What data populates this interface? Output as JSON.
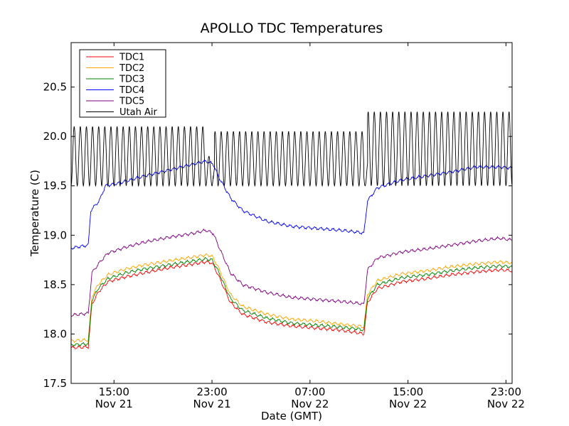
{
  "chart_data": {
    "type": "line",
    "title": "APOLLO TDC Temperatures",
    "xlabel": "Date (GMT)",
    "ylabel": "Temperature (C)",
    "x_unit": "hours since Nov 21 11:30 GMT",
    "xlim": [
      0,
      36
    ],
    "ylim": [
      17.5,
      20.95
    ],
    "yticks": [
      17.5,
      18.0,
      18.5,
      19.0,
      19.5,
      20.0,
      20.5
    ],
    "xticks": [
      {
        "x": 3.5,
        "time": "15:00",
        "date": "Nov 21"
      },
      {
        "x": 11.5,
        "time": "23:00",
        "date": "Nov 21"
      },
      {
        "x": 19.5,
        "time": "07:00",
        "date": "Nov 22"
      },
      {
        "x": 27.5,
        "time": "15:00",
        "date": "Nov 22"
      },
      {
        "x": 35.5,
        "time": "23:00",
        "date": "Nov 22"
      }
    ],
    "legend_position": "top-left",
    "series": [
      {
        "name": "TDC1",
        "color": "#ff0000",
        "points": [
          [
            0,
            17.86
          ],
          [
            1.4,
            17.87
          ],
          [
            1.7,
            18.3
          ],
          [
            2.2,
            18.42
          ],
          [
            3,
            18.53
          ],
          [
            4.5,
            18.58
          ],
          [
            6,
            18.62
          ],
          [
            8,
            18.67
          ],
          [
            10,
            18.71
          ],
          [
            11,
            18.73
          ],
          [
            11.5,
            18.72
          ],
          [
            12,
            18.6
          ],
          [
            13,
            18.32
          ],
          [
            14,
            18.2
          ],
          [
            16,
            18.12
          ],
          [
            18,
            18.08
          ],
          [
            20,
            18.06
          ],
          [
            22,
            18.04
          ],
          [
            23.5,
            18.01
          ],
          [
            23.9,
            18.0
          ],
          [
            24.2,
            18.32
          ],
          [
            25,
            18.46
          ],
          [
            27,
            18.53
          ],
          [
            29,
            18.56
          ],
          [
            31,
            18.6
          ],
          [
            33,
            18.63
          ],
          [
            35,
            18.65
          ],
          [
            36,
            18.64
          ]
        ]
      },
      {
        "name": "TDC2",
        "color": "#ffa500",
        "points": [
          [
            0,
            17.93
          ],
          [
            1.4,
            17.94
          ],
          [
            1.7,
            18.38
          ],
          [
            2.2,
            18.5
          ],
          [
            3,
            18.6
          ],
          [
            4.5,
            18.66
          ],
          [
            6,
            18.7
          ],
          [
            8,
            18.74
          ],
          [
            10,
            18.78
          ],
          [
            11,
            18.8
          ],
          [
            11.5,
            18.79
          ],
          [
            12,
            18.68
          ],
          [
            13,
            18.4
          ],
          [
            14,
            18.28
          ],
          [
            16,
            18.2
          ],
          [
            18,
            18.15
          ],
          [
            20,
            18.13
          ],
          [
            22,
            18.1
          ],
          [
            23.5,
            18.08
          ],
          [
            23.9,
            18.07
          ],
          [
            24.2,
            18.4
          ],
          [
            25,
            18.54
          ],
          [
            27,
            18.61
          ],
          [
            29,
            18.64
          ],
          [
            31,
            18.68
          ],
          [
            33,
            18.71
          ],
          [
            35,
            18.73
          ],
          [
            36,
            18.72
          ]
        ]
      },
      {
        "name": "TDC3",
        "color": "#008000",
        "points": [
          [
            0,
            17.89
          ],
          [
            1.4,
            17.9
          ],
          [
            1.7,
            18.34
          ],
          [
            2.2,
            18.46
          ],
          [
            3,
            18.56
          ],
          [
            4.5,
            18.62
          ],
          [
            6,
            18.66
          ],
          [
            8,
            18.7
          ],
          [
            10,
            18.74
          ],
          [
            11,
            18.76
          ],
          [
            11.5,
            18.75
          ],
          [
            12,
            18.64
          ],
          [
            13,
            18.36
          ],
          [
            14,
            18.24
          ],
          [
            16,
            18.16
          ],
          [
            18,
            18.11
          ],
          [
            20,
            18.09
          ],
          [
            22,
            18.07
          ],
          [
            23.5,
            18.05
          ],
          [
            23.9,
            18.04
          ],
          [
            24.2,
            18.36
          ],
          [
            25,
            18.5
          ],
          [
            27,
            18.57
          ],
          [
            29,
            18.6
          ],
          [
            31,
            18.64
          ],
          [
            33,
            18.67
          ],
          [
            35,
            18.69
          ],
          [
            36,
            18.68
          ]
        ]
      },
      {
        "name": "TDC4",
        "color": "#0000ff",
        "points": [
          [
            0,
            18.87
          ],
          [
            1.4,
            18.9
          ],
          [
            1.6,
            19.25
          ],
          [
            2.3,
            19.35
          ],
          [
            2.8,
            19.5
          ],
          [
            4,
            19.53
          ],
          [
            6,
            19.6
          ],
          [
            8,
            19.66
          ],
          [
            10,
            19.72
          ],
          [
            11,
            19.75
          ],
          [
            11.6,
            19.72
          ],
          [
            12,
            19.6
          ],
          [
            13,
            19.38
          ],
          [
            14,
            19.25
          ],
          [
            16,
            19.14
          ],
          [
            18,
            19.09
          ],
          [
            20,
            19.07
          ],
          [
            22,
            19.05
          ],
          [
            23.5,
            19.03
          ],
          [
            23.9,
            19.02
          ],
          [
            24.2,
            19.35
          ],
          [
            25,
            19.48
          ],
          [
            27,
            19.56
          ],
          [
            29,
            19.6
          ],
          [
            31,
            19.64
          ],
          [
            33,
            19.69
          ],
          [
            35,
            19.69
          ],
          [
            36,
            19.68
          ]
        ]
      },
      {
        "name": "TDC5",
        "color": "#800080",
        "points": [
          [
            0,
            18.19
          ],
          [
            1.4,
            18.21
          ],
          [
            1.7,
            18.62
          ],
          [
            2.3,
            18.72
          ],
          [
            3,
            18.82
          ],
          [
            4.5,
            18.88
          ],
          [
            6,
            18.93
          ],
          [
            8,
            18.98
          ],
          [
            10,
            19.02
          ],
          [
            11,
            19.05
          ],
          [
            11.6,
            19.02
          ],
          [
            12,
            18.9
          ],
          [
            13,
            18.62
          ],
          [
            14,
            18.5
          ],
          [
            16,
            18.42
          ],
          [
            18,
            18.37
          ],
          [
            20,
            18.35
          ],
          [
            22,
            18.33
          ],
          [
            23.5,
            18.31
          ],
          [
            23.9,
            18.3
          ],
          [
            24.2,
            18.65
          ],
          [
            25,
            18.77
          ],
          [
            27,
            18.83
          ],
          [
            29,
            18.86
          ],
          [
            31,
            18.9
          ],
          [
            33,
            18.94
          ],
          [
            35,
            18.97
          ],
          [
            36,
            18.95
          ]
        ]
      },
      {
        "name": "Utah Air",
        "color": "#000000",
        "oscillation": {
          "base": 19.5,
          "period_hours": 0.5,
          "segments": [
            [
              0,
              11.0,
              20.1
            ],
            [
              11.0,
              11.6,
              19.8
            ],
            [
              11.6,
              11.7,
              19.7
            ],
            [
              11.7,
              23.9,
              20.05
            ],
            [
              23.9,
              24.2,
              19.75
            ],
            [
              24.2,
              36,
              20.25
            ]
          ]
        }
      }
    ]
  }
}
